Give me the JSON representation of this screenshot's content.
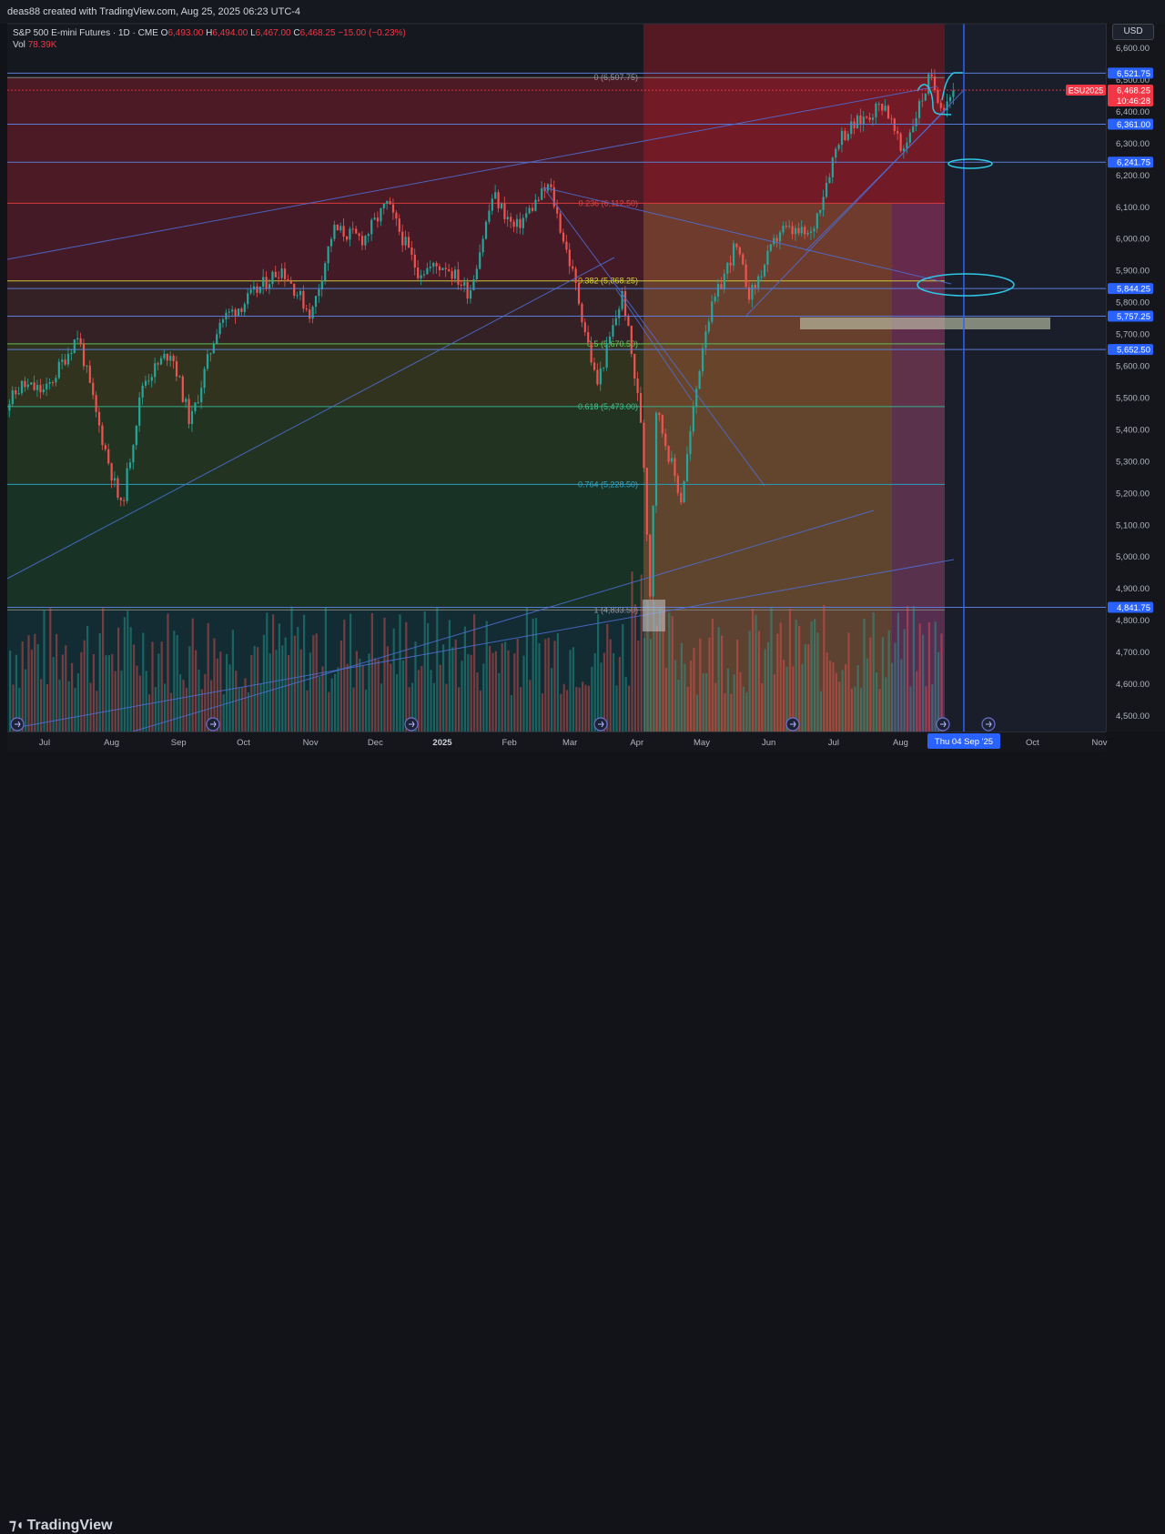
{
  "header": {
    "author_line": "deas88 created with TradingView.com, Aug 25, 2025 06:23 UTC-4"
  },
  "legend": {
    "symbol": "S&P 500 E-mini Futures · 1D · CME",
    "o_label": "O",
    "o": "6,493.00",
    "h_label": "H",
    "h": "6,494.00",
    "l_label": "L",
    "l": "6,467.00",
    "c_label": "C",
    "c": "6,468.25",
    "change": "−15.00 (−0.23%)",
    "vol_label": "Vol",
    "vol": "78.39K"
  },
  "currency_button": "USD",
  "footer": {
    "brand": "TradingView"
  },
  "colors": {
    "up": "#26a69a",
    "down": "#ef5350",
    "line": "#2962ff",
    "accent": "#2962ff"
  },
  "chart_data": {
    "type": "candlestick",
    "symbol": "ESU2025",
    "interval": "1D",
    "ylim": [
      4460,
      6650
    ],
    "price_ticks": [
      4500,
      4600,
      4700,
      4800,
      4900,
      5000,
      5100,
      5200,
      5300,
      5400,
      5500,
      5600,
      5700,
      5800,
      5900,
      6000,
      6100,
      6200,
      6300,
      6400,
      6500,
      6600
    ],
    "price_tick_labels": [
      "4,500.00",
      "4,600.00",
      "4,700.00",
      "4,800.00",
      "4,900.00",
      "5,000.00",
      "5,100.00",
      "5,200.00",
      "5,300.00",
      "5,400.00",
      "5,500.00",
      "5,600.00",
      "5,700.00",
      "5,800.00",
      "5,900.00",
      "6,000.00",
      "6,100.00",
      "6,200.00",
      "6,300.00",
      "6,400.00",
      "6,500.00",
      "6,600.00"
    ],
    "time_labels": [
      {
        "label": "Jul",
        "date": "2024-07-01"
      },
      {
        "label": "Aug",
        "date": "2024-08-01"
      },
      {
        "label": "Sep",
        "date": "2024-09-01"
      },
      {
        "label": "Oct",
        "date": "2024-10-01"
      },
      {
        "label": "Nov",
        "date": "2024-11-01"
      },
      {
        "label": "Dec",
        "date": "2024-12-01"
      },
      {
        "label": "2025",
        "date": "2025-01-01"
      },
      {
        "label": "Feb",
        "date": "2025-02-01"
      },
      {
        "label": "Mar",
        "date": "2025-03-01"
      },
      {
        "label": "Apr",
        "date": "2025-04-01"
      },
      {
        "label": "May",
        "date": "2025-05-01"
      },
      {
        "label": "Jun",
        "date": "2025-06-01"
      },
      {
        "label": "Jul",
        "date": "2025-07-01"
      },
      {
        "label": "Aug",
        "date": "2025-08-01"
      },
      {
        "label": "Oct",
        "date": "2025-10-01"
      },
      {
        "label": "Nov",
        "date": "2025-11-01"
      }
    ],
    "cursor_date_label": "Thu 04 Sep '25",
    "price_path": [
      [
        "2024-06-10",
        5450
      ],
      [
        "2024-06-20",
        5540
      ],
      [
        "2024-07-01",
        5520
      ],
      [
        "2024-07-16",
        5700
      ],
      [
        "2024-07-25",
        5430
      ],
      [
        "2024-08-05",
        5150
      ],
      [
        "2024-08-15",
        5550
      ],
      [
        "2024-08-28",
        5650
      ],
      [
        "2024-09-06",
        5420
      ],
      [
        "2024-09-19",
        5740
      ],
      [
        "2024-10-01",
        5800
      ],
      [
        "2024-10-18",
        5910
      ],
      [
        "2024-11-01",
        5760
      ],
      [
        "2024-11-11",
        6030
      ],
      [
        "2024-11-25",
        6000
      ],
      [
        "2024-12-06",
        6110
      ],
      [
        "2024-12-20",
        5900
      ],
      [
        "2025-01-02",
        5920
      ],
      [
        "2025-01-13",
        5830
      ],
      [
        "2025-01-24",
        6140
      ],
      [
        "2025-02-03",
        6030
      ],
      [
        "2025-02-19",
        6170
      ],
      [
        "2025-03-03",
        5860
      ],
      [
        "2025-03-13",
        5540
      ],
      [
        "2025-03-25",
        5830
      ],
      [
        "2025-04-03",
        5400
      ],
      [
        "2025-04-07",
        4833
      ],
      [
        "2025-04-09",
        5480
      ],
      [
        "2025-04-21",
        5180
      ],
      [
        "2025-05-02",
        5720
      ],
      [
        "2025-05-16",
        5980
      ],
      [
        "2025-05-23",
        5820
      ],
      [
        "2025-06-06",
        6030
      ],
      [
        "2025-06-20",
        6010
      ],
      [
        "2025-07-03",
        6320
      ],
      [
        "2025-07-24",
        6430
      ],
      [
        "2025-08-01",
        6270
      ],
      [
        "2025-08-14",
        6507
      ],
      [
        "2025-08-20",
        6420
      ],
      [
        "2025-08-25",
        6468.25
      ]
    ],
    "horizontal_levels": [
      {
        "price": 6521.75,
        "label": "6,521.75"
      },
      {
        "price": 6361.0,
        "label": "6,361.00"
      },
      {
        "price": 6241.75,
        "label": "6,241.75"
      },
      {
        "price": 5844.25,
        "label": "5,844.25"
      },
      {
        "price": 5757.25,
        "label": "5,757.25"
      },
      {
        "price": 5652.5,
        "label": "5,652.50"
      },
      {
        "price": 4841.75,
        "label": "4,841.75"
      }
    ],
    "fib_levels": [
      {
        "ratio": "0",
        "price": 6507.75,
        "label": "0 (6,507.75)"
      },
      {
        "ratio": "0.236",
        "price": 6112.5,
        "label": "0.236 (6,112.50)"
      },
      {
        "ratio": "0.382",
        "price": 5868.25,
        "label": "0.382 (5,868.25)"
      },
      {
        "ratio": "0.5",
        "price": 5670.5,
        "label": "0.5 (5,670.50)"
      },
      {
        "ratio": "0.618",
        "price": 5473.0,
        "label": "0.618 (5,473.00)"
      },
      {
        "ratio": "0.764",
        "price": 5228.5,
        "label": "0.764 (5,228.50)"
      },
      {
        "ratio": "1",
        "price": 4833.5,
        "label": "1 (4,833.50)"
      }
    ],
    "last_price": {
      "ticker": "ESU2025",
      "price": "6,468.25",
      "countdown": "10:46:28"
    }
  }
}
